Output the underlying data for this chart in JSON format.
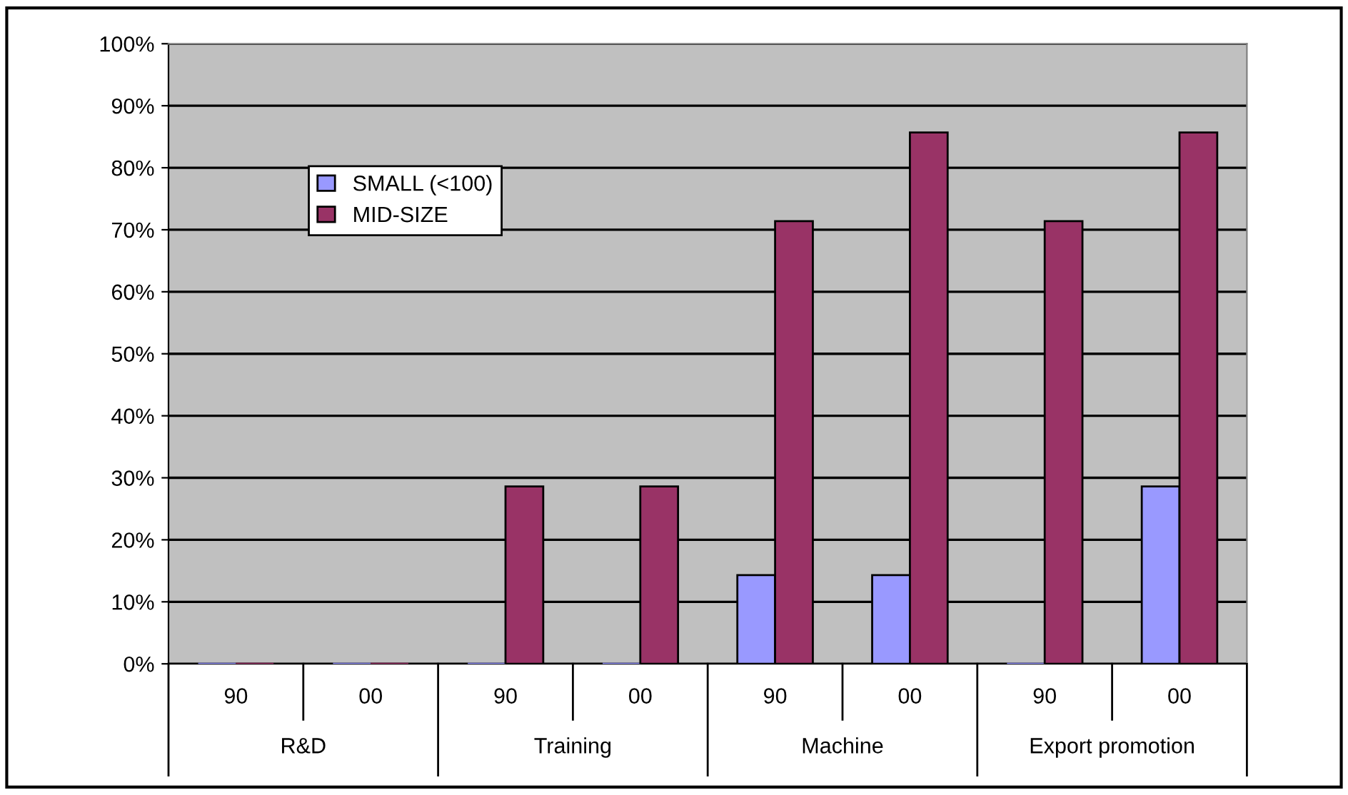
{
  "chart_data": {
    "type": "bar",
    "categories": [
      "90",
      "00",
      "90",
      "00",
      "90",
      "00",
      "90",
      "00"
    ],
    "series": [
      {
        "name": "SMALL (<100)",
        "color": "#9999ff",
        "values": [
          0,
          0,
          0,
          0,
          14.3,
          14.3,
          0,
          28.6
        ]
      },
      {
        "name": "MID-SIZE",
        "color": "#993366",
        "values": [
          0,
          0,
          28.6,
          28.6,
          71.4,
          85.7,
          71.4,
          85.7
        ]
      }
    ],
    "annotations": [
      "R&D",
      "Training",
      "Machine",
      "Export promotion"
    ],
    "ylim": [
      0,
      100
    ],
    "yticks": [
      {
        "value": 0,
        "label": "0%"
      },
      {
        "value": 10,
        "label": "10%"
      },
      {
        "value": 20,
        "label": "20%"
      },
      {
        "value": 30,
        "label": "30%"
      },
      {
        "value": 40,
        "label": "40%"
      },
      {
        "value": 50,
        "label": "50%"
      },
      {
        "value": 60,
        "label": "60%"
      },
      {
        "value": 70,
        "label": "70%"
      },
      {
        "value": 80,
        "label": "80%"
      },
      {
        "value": 90,
        "label": "90%"
      },
      {
        "value": 100,
        "label": "100%"
      }
    ],
    "grid": "y",
    "legend": "top left"
  }
}
